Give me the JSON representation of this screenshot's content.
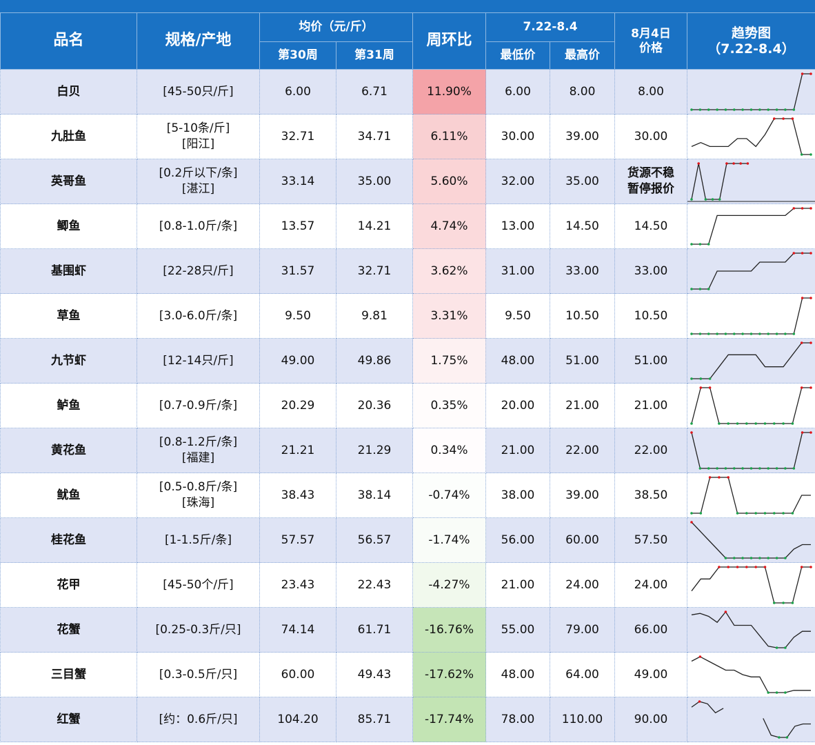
{
  "colors": {
    "header_bg": "#1a72c4",
    "row_alt_bg": "#dfe4f5",
    "low_color": "#1aa34a",
    "high_color": "#e0161b",
    "up_bg": "#f4a3a8",
    "down_bg": "#c3e4b4",
    "marker_high": "#e0161b",
    "marker_low": "#1aa34a",
    "line": "#222222"
  },
  "header": {
    "name": "品名",
    "spec": "规格/产地",
    "avg": "均价（元/斤）",
    "week30": "第30周",
    "week31": "第31周",
    "wow": "周环比",
    "range": "7.22-8.4",
    "min": "最低价",
    "max": "最高价",
    "aug4_line1": "8月4日",
    "aug4_line2": "价格",
    "trend_line1": "趋势图",
    "trend_line2": "（7.22-8.4）"
  },
  "rows": [
    {
      "name": "白贝",
      "spec1": "[45-50只/斤]",
      "spec2": "",
      "w30": "6.00",
      "w31": "6.71",
      "wow": "11.90%",
      "wow_value": 11.9,
      "min": "6.00",
      "max": "8.00",
      "aug4": "8.00",
      "note1": "",
      "note2": "",
      "trend": [
        6,
        6,
        6,
        6,
        6,
        6,
        6,
        6,
        6,
        6,
        6,
        6,
        6,
        8,
        8
      ]
    },
    {
      "name": "九肚鱼",
      "spec1": "[5-10条/斤]",
      "spec2": "[阳江]",
      "w30": "32.71",
      "w31": "34.71",
      "wow": "6.11%",
      "wow_value": 6.11,
      "min": "30.00",
      "max": "39.00",
      "aug4": "30.00",
      "note1": "",
      "note2": "",
      "trend": [
        32,
        33,
        32,
        32,
        32,
        34,
        34,
        32,
        35,
        39,
        39,
        39,
        30,
        30
      ]
    },
    {
      "name": "英哥鱼",
      "spec1": "[0.2斤以下/条]",
      "spec2": "[湛江]",
      "w30": "33.14",
      "w31": "35.00",
      "wow": "5.60%",
      "wow_value": 5.6,
      "min": "32.00",
      "max": "35.00",
      "aug4": "",
      "note1": "货源不稳",
      "note2": "暂停报价",
      "trend": [
        34,
        35,
        34,
        34,
        34,
        35,
        35,
        35,
        35,
        null,
        null,
        null,
        null,
        null,
        null,
        null,
        null,
        0
      ]
    },
    {
      "name": "鲫鱼",
      "spec1": "[0.8-1.0斤/条]",
      "spec2": "",
      "w30": "13.57",
      "w31": "14.21",
      "wow": "4.74%",
      "wow_value": 4.74,
      "min": "13.00",
      "max": "14.50",
      "aug4": "14.50",
      "note1": "",
      "note2": "",
      "trend": [
        13,
        13,
        13,
        14.2,
        14.2,
        14.2,
        14.2,
        14.2,
        14.2,
        14.2,
        14.2,
        14.2,
        14.5,
        14.5,
        14.5
      ]
    },
    {
      "name": "基围虾",
      "spec1": "[22-28只/斤]",
      "spec2": "",
      "w30": "31.57",
      "w31": "32.71",
      "wow": "3.62%",
      "wow_value": 3.62,
      "min": "31.00",
      "max": "33.00",
      "aug4": "33.00",
      "note1": "",
      "note2": "",
      "trend": [
        31,
        31,
        31,
        32,
        32,
        32,
        32,
        32,
        32.5,
        32.5,
        32.5,
        32.5,
        33,
        33,
        33
      ]
    },
    {
      "name": "草鱼",
      "spec1": "[3.0-6.0斤/条]",
      "spec2": "",
      "w30": "9.50",
      "w31": "9.81",
      "wow": "3.31%",
      "wow_value": 3.31,
      "min": "9.50",
      "max": "10.50",
      "aug4": "10.50",
      "note1": "",
      "note2": "",
      "trend": [
        9.5,
        9.5,
        9.5,
        9.5,
        9.5,
        9.5,
        9.5,
        9.5,
        9.5,
        9.5,
        9.5,
        9.5,
        9.5,
        10.5,
        10.5
      ]
    },
    {
      "name": "九节虾",
      "spec1": "[12-14只/斤]",
      "spec2": "",
      "w30": "49.00",
      "w31": "49.86",
      "wow": "1.75%",
      "wow_value": 1.75,
      "min": "48.00",
      "max": "51.00",
      "aug4": "51.00",
      "note1": "",
      "note2": "",
      "trend": [
        48,
        48,
        48,
        49,
        50,
        50,
        50,
        50,
        49,
        49,
        49,
        50,
        51,
        51
      ]
    },
    {
      "name": "鲈鱼",
      "spec1": "[0.7-0.9斤/条]",
      "spec2": "",
      "w30": "20.29",
      "w31": "20.36",
      "wow": "0.35%",
      "wow_value": 0.35,
      "min": "20.00",
      "max": "21.00",
      "aug4": "21.00",
      "note1": "",
      "note2": "",
      "trend": [
        20,
        21,
        21,
        20,
        20,
        20,
        20,
        20,
        20,
        20,
        20,
        20,
        21,
        21
      ]
    },
    {
      "name": "黄花鱼",
      "spec1": "[0.8-1.2斤/条]",
      "spec2": "[福建]",
      "w30": "21.21",
      "w31": "21.29",
      "wow": "0.34%",
      "wow_value": 0.34,
      "min": "21.00",
      "max": "22.00",
      "aug4": "22.00",
      "note1": "",
      "note2": "",
      "trend": [
        22,
        21,
        21,
        21,
        21,
        21,
        21,
        21,
        21,
        21,
        21,
        21,
        21,
        22,
        22
      ]
    },
    {
      "name": "鱿鱼",
      "spec1": "[0.5-0.8斤/条]",
      "spec2": "[珠海]",
      "w30": "38.43",
      "w31": "38.14",
      "wow": "-0.74%",
      "wow_value": -0.74,
      "min": "38.00",
      "max": "39.00",
      "aug4": "38.50",
      "note1": "",
      "note2": "",
      "trend": [
        38,
        38,
        39,
        39,
        39,
        38,
        38,
        38,
        38,
        38,
        38,
        38,
        38.5,
        38.5
      ]
    },
    {
      "name": "桂花鱼",
      "spec1": "[1-1.5斤/条]",
      "spec2": "",
      "w30": "57.57",
      "w31": "56.57",
      "wow": "-1.74%",
      "wow_value": -1.74,
      "min": "56.00",
      "max": "60.00",
      "aug4": "57.50",
      "note1": "",
      "note2": "",
      "trend": [
        60,
        59,
        58,
        57,
        56,
        56,
        56,
        56,
        56,
        56,
        56,
        56,
        57,
        57.5,
        57.5
      ]
    },
    {
      "name": "花甲",
      "spec1": "[45-50个/斤]",
      "spec2": "",
      "w30": "23.43",
      "w31": "22.43",
      "wow": "-4.27%",
      "wow_value": -4.27,
      "min": "21.00",
      "max": "24.00",
      "aug4": "24.00",
      "note1": "",
      "note2": "",
      "trend": [
        22,
        23,
        23,
        24,
        24,
        24,
        24,
        24,
        24,
        21,
        21,
        21,
        24,
        24
      ]
    },
    {
      "name": "花蟹",
      "spec1": "[0.25-0.3斤/只]",
      "spec2": "",
      "w30": "74.14",
      "w31": "61.71",
      "wow": "-16.76%",
      "wow_value": -16.76,
      "min": "55.00",
      "max": "79.00",
      "aug4": "66.00",
      "note1": "",
      "note2": "",
      "trend": [
        77,
        78,
        76,
        72,
        79,
        70,
        70,
        70,
        63,
        56,
        55,
        55,
        62,
        66,
        66
      ]
    },
    {
      "name": "三目蟹",
      "spec1": "[0.3-0.5斤/只]",
      "spec2": "",
      "w30": "60.00",
      "w31": "49.43",
      "wow": "-17.62%",
      "wow_value": -17.62,
      "min": "48.00",
      "max": "64.00",
      "aug4": "49.00",
      "note1": "",
      "note2": "",
      "trend": [
        62,
        64,
        62,
        60,
        58,
        58,
        56,
        55,
        55,
        48,
        48,
        48,
        49,
        49,
        49
      ]
    },
    {
      "name": "红蟹",
      "spec1": "[约：0.6斤/只]",
      "spec2": "",
      "w30": "104.20",
      "w31": "85.71",
      "wow": "-17.74%",
      "wow_value": -17.74,
      "min": "78.00",
      "max": "110.00",
      "aug4": "90.00",
      "note1": "",
      "note2": "",
      "trend": [
        105,
        110,
        108,
        100,
        104,
        null,
        null,
        null,
        null,
        95,
        80,
        78,
        78,
        88,
        90,
        90
      ]
    }
  ]
}
